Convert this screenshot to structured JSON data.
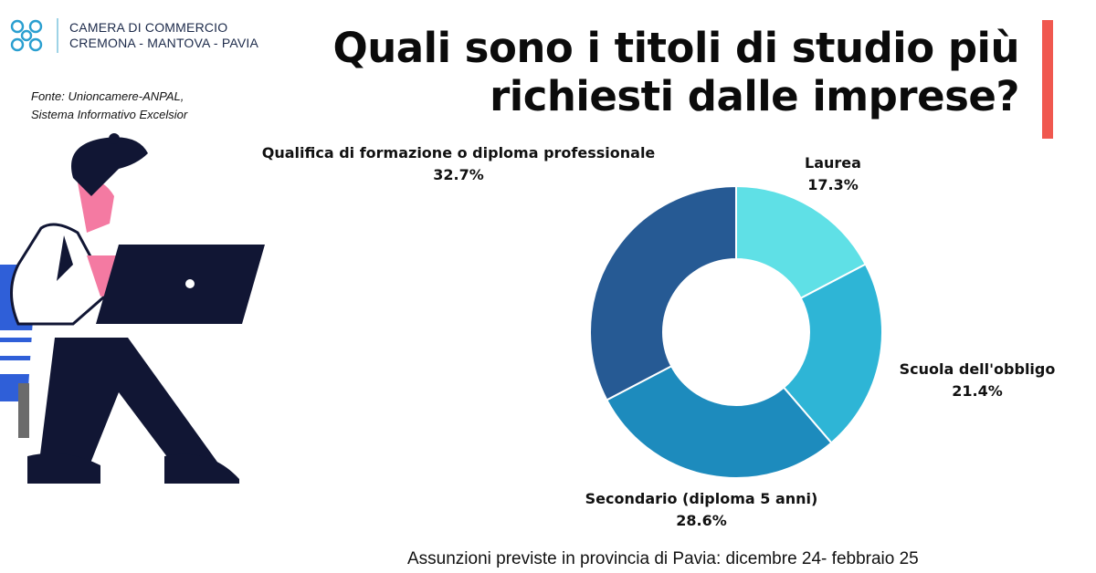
{
  "header": {
    "org_line1": "CAMERA DI COMMERCIO",
    "org_line2": "CREMONA - MANTOVA - PAVIA",
    "logo_icon": "chamber-logo-icon",
    "brand_color": "#2a9fd0"
  },
  "source": {
    "line1": "Fonte: Unioncamere-ANPAL,",
    "line2": "Sistema Informativo Excelsior"
  },
  "title": {
    "line1": "Quali sono i titoli di studio più",
    "line2": "richiesti dalle imprese?"
  },
  "accent_color": "#f0584f",
  "illustration_icon": "person-at-laptop-illustration",
  "footer": "Assunzioni previste in provincia di Pavia: dicembre 24- febbraio 25",
  "chart_data": {
    "type": "pie",
    "variant": "donut",
    "title": "Quali sono i titoli di studio più richiesti dalle imprese?",
    "slices": [
      {
        "label": "Laurea",
        "value": 17.3,
        "value_label": "17.3%",
        "color": "#5fe0e6"
      },
      {
        "label": "Scuola dell'obbligo",
        "value": 21.4,
        "value_label": "21.4%",
        "color": "#2eb5d6"
      },
      {
        "label": "Secondario (diploma 5 anni)",
        "value": 28.6,
        "value_label": "28.6%",
        "color": "#1d8bbd"
      },
      {
        "label": "Qualifica di formazione o diploma professionale",
        "value": 32.7,
        "value_label": "32.7%",
        "color": "#265a94"
      }
    ],
    "start": "top",
    "direction": "clockwise",
    "legend": "none"
  }
}
